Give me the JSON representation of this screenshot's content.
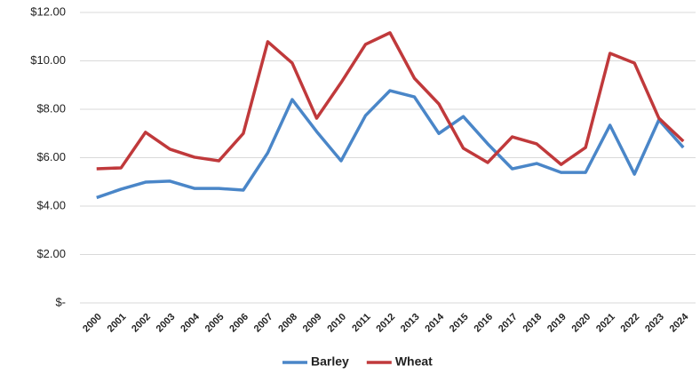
{
  "chart_data": {
    "type": "line",
    "categories": [
      "2000",
      "2001",
      "2002",
      "2003",
      "2004",
      "2005",
      "2006",
      "2007",
      "2008",
      "2009",
      "2010",
      "2011",
      "2012",
      "2013",
      "2014",
      "2015",
      "2016",
      "2017",
      "2018",
      "2019",
      "2020",
      "2021",
      "2022",
      "2023",
      "2024"
    ],
    "series": [
      {
        "name": "Barley",
        "color": "#4a86c8",
        "values": [
          4.35,
          4.7,
          4.99,
          5.03,
          4.73,
          4.73,
          4.66,
          6.2,
          8.4,
          7.08,
          5.87,
          7.74,
          8.77,
          8.51,
          7.0,
          7.7,
          6.57,
          5.54,
          5.76,
          5.39,
          5.39,
          7.34,
          5.32,
          7.56,
          6.42
        ]
      },
      {
        "name": "Wheat",
        "color": "#c0393b",
        "values": [
          5.54,
          5.58,
          7.05,
          6.35,
          6.02,
          5.87,
          7.0,
          10.79,
          9.91,
          7.63,
          9.1,
          10.68,
          11.16,
          9.28,
          8.22,
          6.39,
          5.8,
          6.86,
          6.57,
          5.72,
          6.42,
          10.31,
          9.91,
          7.63,
          6.68
        ]
      }
    ],
    "ylim": [
      0,
      12
    ],
    "yticks": [
      {
        "value": 0,
        "label": "$-"
      },
      {
        "value": 2,
        "label": "$2.00"
      },
      {
        "value": 4,
        "label": "$4.00"
      },
      {
        "value": 6,
        "label": "$6.00"
      },
      {
        "value": 8,
        "label": "$8.00"
      },
      {
        "value": 10,
        "label": "$10.00"
      },
      {
        "value": 12,
        "label": "$12.00"
      }
    ],
    "grid": true,
    "legend": "bottom"
  }
}
